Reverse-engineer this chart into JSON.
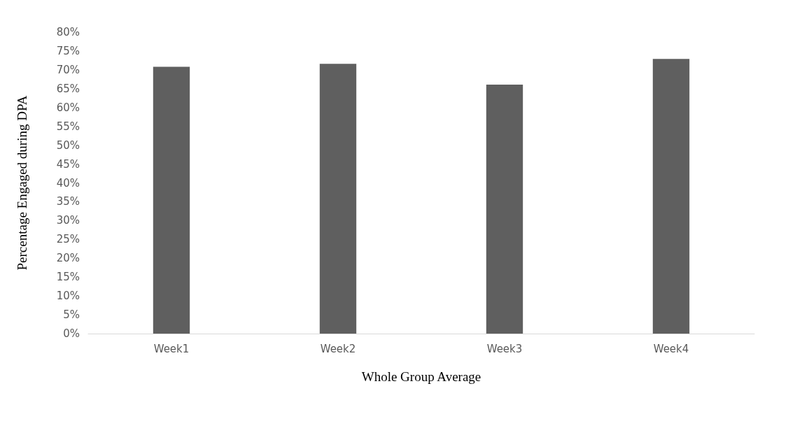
{
  "chart_data": {
    "type": "bar",
    "xlabel": "Whole Group Average",
    "ylabel": "Percentage Engaged during DPA",
    "categories": [
      "Week1",
      "Week2",
      "Week3",
      "Week4"
    ],
    "values": [
      70.8,
      71.6,
      66.1,
      72.9
    ],
    "color": "#5f5f5f",
    "ylim": [
      0,
      80
    ],
    "yticks": [
      {
        "value": 0,
        "label": "0%"
      },
      {
        "value": 5,
        "label": "5%"
      },
      {
        "value": 10,
        "label": "10%"
      },
      {
        "value": 15,
        "label": "15%"
      },
      {
        "value": 20,
        "label": "20%"
      },
      {
        "value": 25,
        "label": "25%"
      },
      {
        "value": 30,
        "label": "30%"
      },
      {
        "value": 35,
        "label": "35%"
      },
      {
        "value": 40,
        "label": "40%"
      },
      {
        "value": 45,
        "label": "45%"
      },
      {
        "value": 50,
        "label": "50%"
      },
      {
        "value": 55,
        "label": "55%"
      },
      {
        "value": 60,
        "label": "60%"
      },
      {
        "value": 65,
        "label": "65%"
      },
      {
        "value": 70,
        "label": "70%"
      },
      {
        "value": 75,
        "label": "75%"
      },
      {
        "value": 80,
        "label": "80%"
      }
    ],
    "grid": false
  }
}
